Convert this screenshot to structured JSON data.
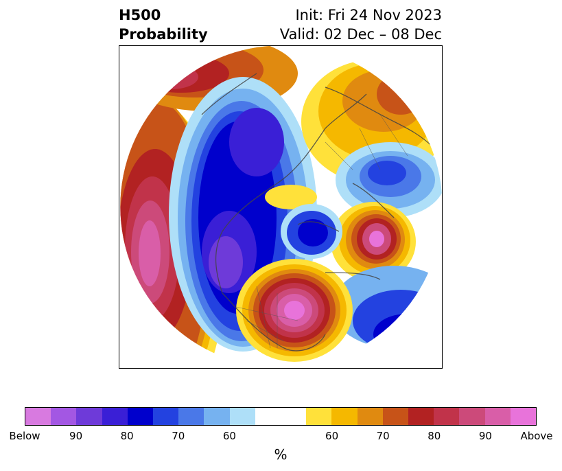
{
  "title": {
    "left_line1": "H500",
    "left_line2": "Probability",
    "right_line1": "Init: Fri 24 Nov 2023",
    "right_line2": "Valid: 02 Dec – 08 Dec"
  },
  "colors": {
    "below": [
      "#d87ae0",
      "#a357e3",
      "#6e3ad9",
      "#3a1fd6",
      "#0000cc",
      "#2342e0",
      "#4a78e8",
      "#76b2f0",
      "#aedff8"
    ],
    "neutral": "#ffffff",
    "above": [
      "#ffe13a",
      "#f5b800",
      "#e08a10",
      "#c75318",
      "#b22222",
      "#c1334a",
      "#cc4a7a",
      "#d95ea8",
      "#e873da"
    ]
  },
  "colorbar": {
    "ticks": [
      "Below",
      "90",
      "80",
      "70",
      "60",
      "60",
      "70",
      "80",
      "90",
      "Above"
    ],
    "unit": "%"
  }
}
